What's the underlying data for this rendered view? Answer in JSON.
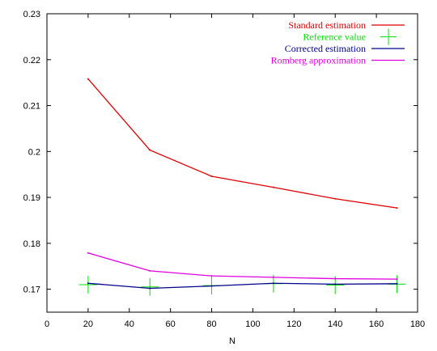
{
  "chart_data": {
    "type": "line",
    "title": "",
    "xlabel": "N",
    "ylabel": "",
    "xlim": [
      0,
      180
    ],
    "ylim": [
      0.165,
      0.23
    ],
    "x_ticks": [
      0,
      20,
      40,
      60,
      80,
      100,
      120,
      140,
      160,
      180
    ],
    "y_ticks": [
      0.17,
      0.18,
      0.19,
      0.2,
      0.21,
      0.22,
      0.23
    ],
    "x_tick_labels": [
      "0",
      "20",
      "40",
      "60",
      "80",
      "100",
      "120",
      "140",
      "160",
      "180"
    ],
    "y_tick_labels": [
      "0.17",
      "0.18",
      "0.19",
      "0.2",
      "0.21",
      "0.22",
      "0.23"
    ],
    "grid": false,
    "legend_position": "top-right",
    "x": [
      20,
      50,
      80,
      110,
      140,
      170
    ],
    "series": [
      {
        "name": "Standard estimation",
        "color": "#e00000",
        "style": "line",
        "values": [
          0.2158,
          0.2003,
          0.1946,
          0.1922,
          0.1897,
          0.1877
        ]
      },
      {
        "name": "Reference value",
        "color": "#00e000",
        "style": "points",
        "marker": "plus",
        "values": [
          0.171,
          0.1705,
          0.1708,
          0.1712,
          0.1709,
          0.1711
        ]
      },
      {
        "name": "Corrected estimation",
        "color": "#00008b",
        "style": "line",
        "values": [
          0.1713,
          0.1702,
          0.1707,
          0.1713,
          0.1711,
          0.1712
        ]
      },
      {
        "name": "Romberg approximation",
        "color": "#e000e0",
        "style": "line",
        "values": [
          0.1779,
          0.174,
          0.1729,
          0.1726,
          0.1723,
          0.1722
        ]
      }
    ]
  }
}
